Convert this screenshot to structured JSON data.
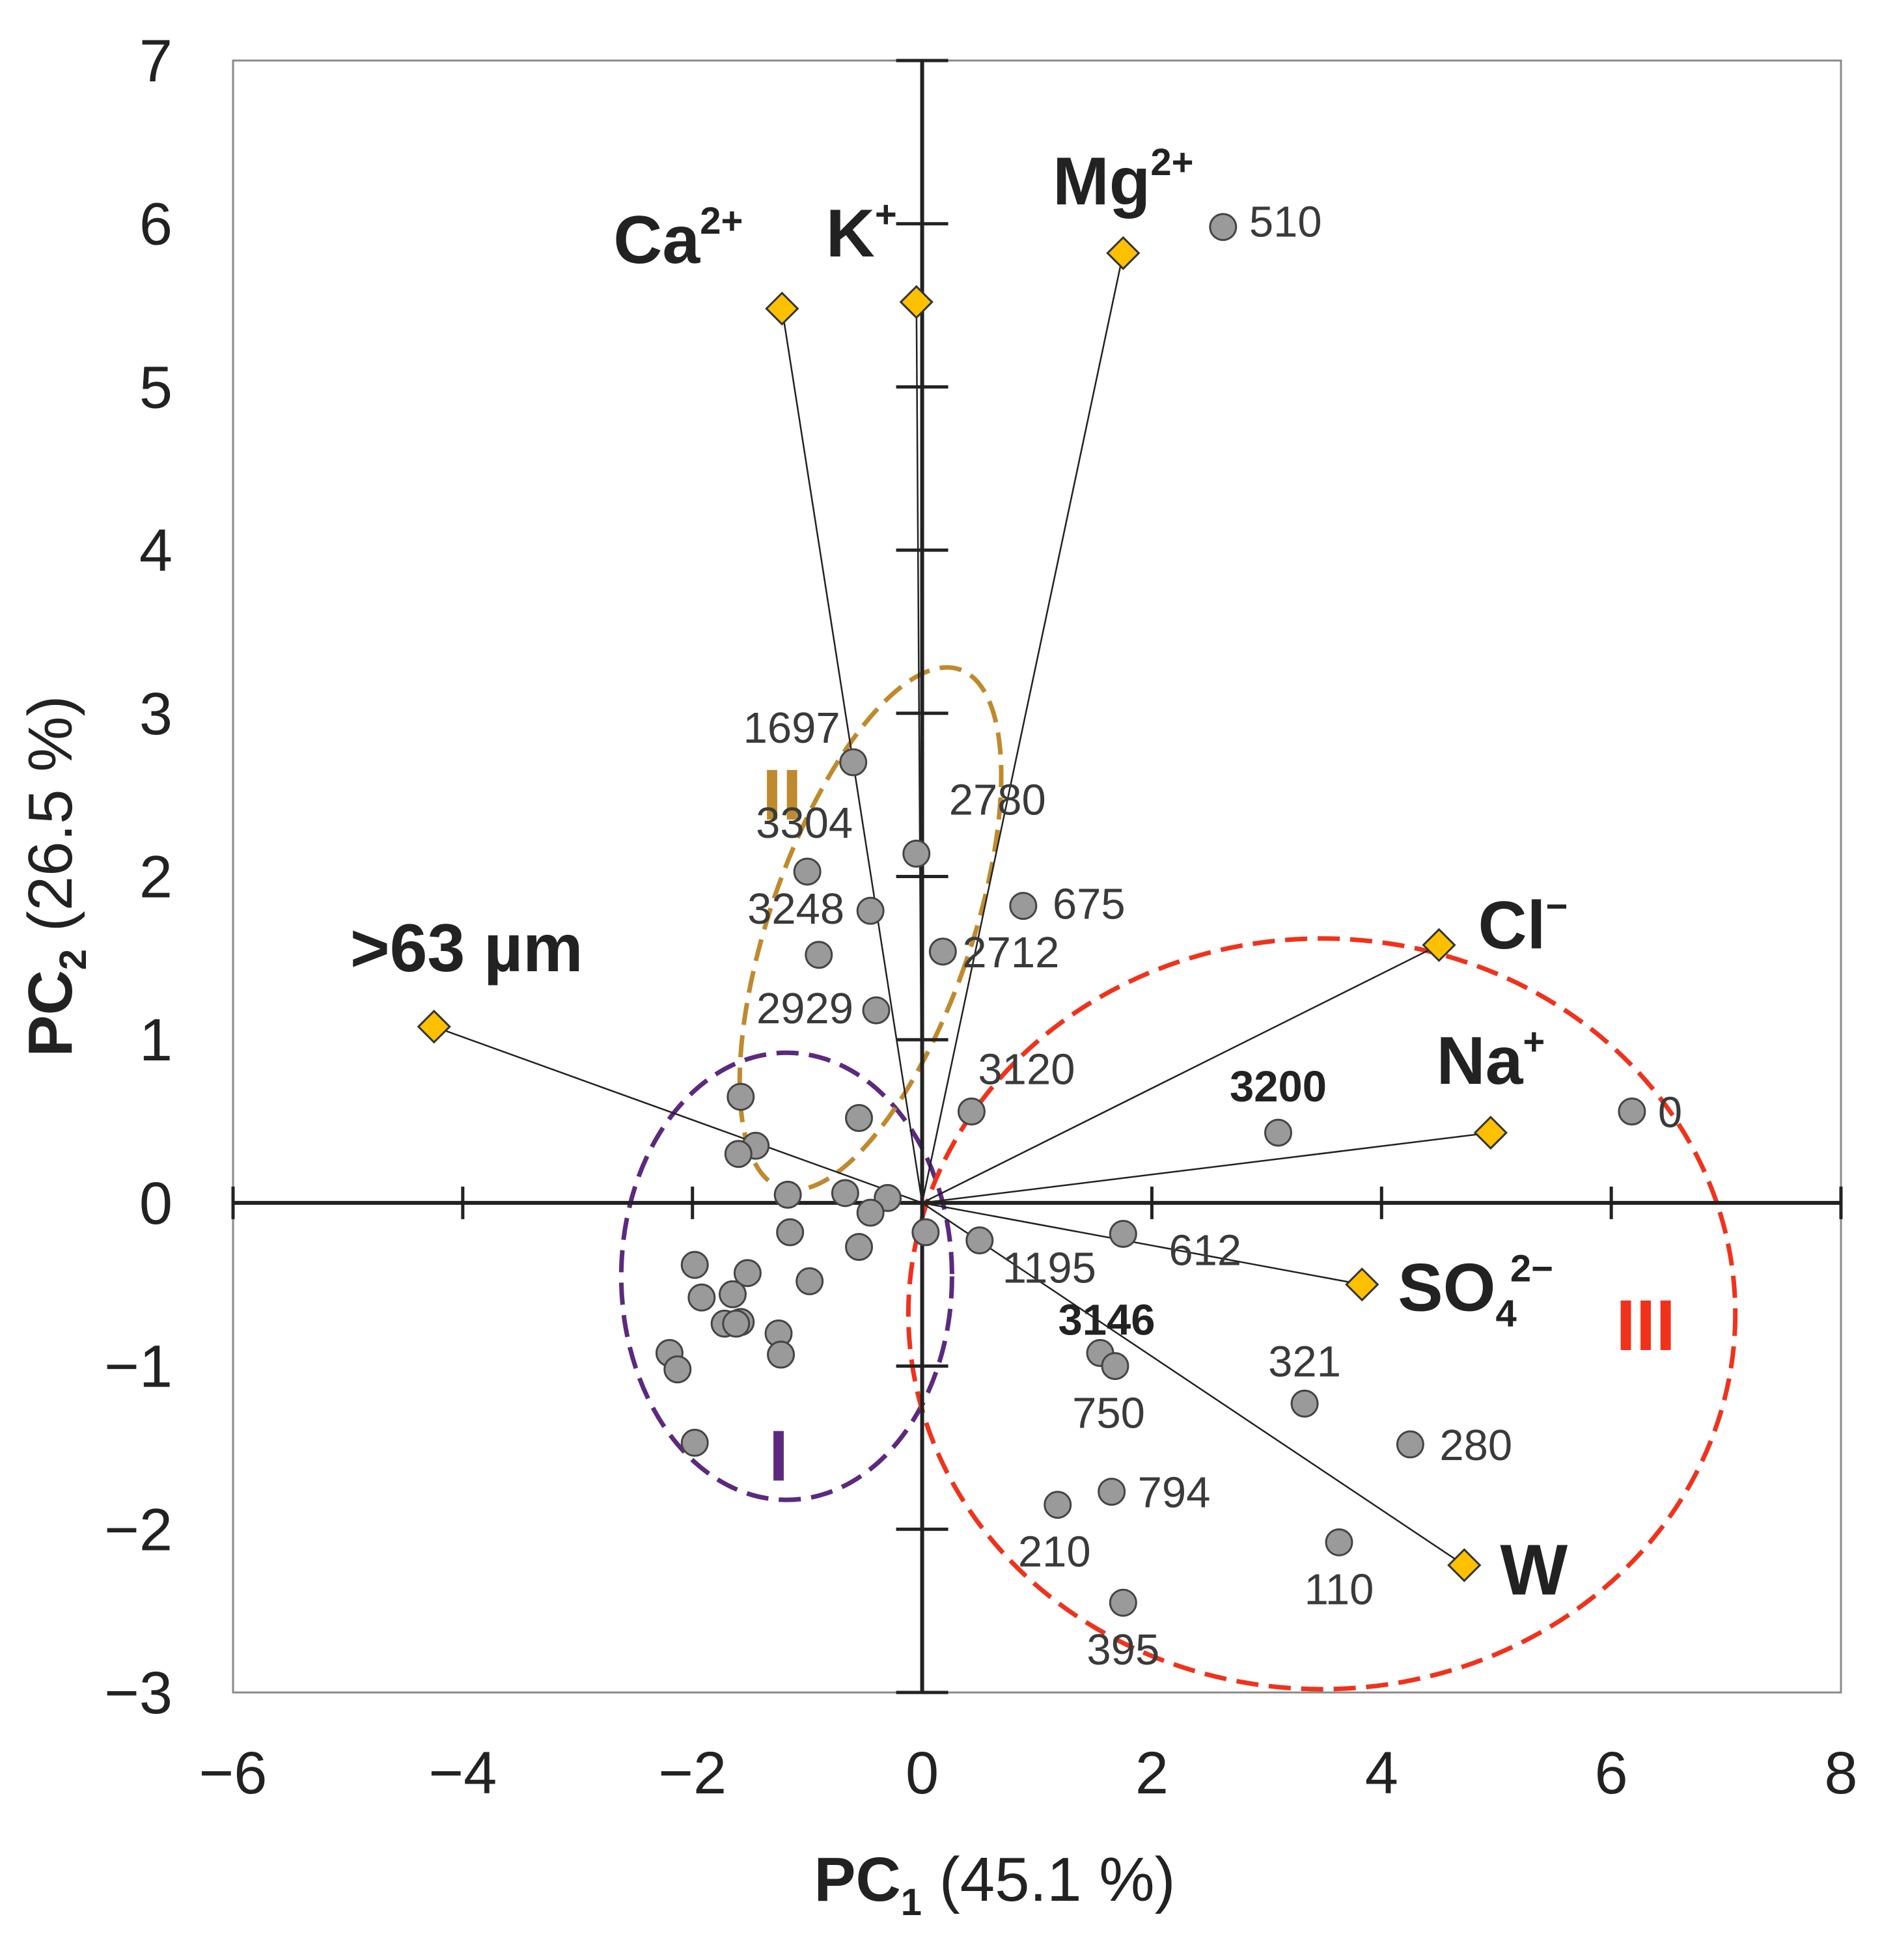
{
  "chart_data": {
    "type": "scatter",
    "subtype": "pca-biplot",
    "xlabel": {
      "main": "PC",
      "sub": "1",
      "rest": " (45.1 %)"
    },
    "ylabel": {
      "main": "PC",
      "sub": "2",
      "rest": " (26.5 %)"
    },
    "xlim": [
      -6,
      8
    ],
    "ylim": [
      -3,
      7
    ],
    "x_ticks": [
      -6,
      -4,
      -2,
      0,
      2,
      4,
      6,
      8
    ],
    "y_ticks": [
      -3,
      -2,
      -1,
      0,
      1,
      2,
      3,
      4,
      5,
      6,
      7
    ],
    "x_tick_labels": [
      "−6",
      "−4",
      "−2",
      "0",
      "2",
      "4",
      "6",
      "8"
    ],
    "y_tick_labels": [
      "−3",
      "−2",
      "−1",
      "0",
      "1",
      "2",
      "3",
      "4",
      "5",
      "6",
      "7"
    ],
    "colors": {
      "point_fill": "#9a9a9a",
      "point_stroke": "#444444",
      "loading_fill": "#FFC000",
      "loading_stroke": "#333333",
      "axis": "#222222",
      "group_I": "#5B2A7E",
      "group_II": "#BF8A2E",
      "group_III": "#F0321C"
    },
    "loadings": [
      {
        "name": "Ca",
        "sup": "2+",
        "sub": "",
        "x": -1.22,
        "y": 5.48
      },
      {
        "name": "K",
        "sup": "+",
        "sub": "",
        "x": -0.05,
        "y": 5.52
      },
      {
        "name": "Mg",
        "sup": "2+",
        "sub": "",
        "x": 1.75,
        "y": 5.82
      },
      {
        "name": "Cl",
        "sup": "−",
        "sub": "",
        "x": 4.5,
        "y": 1.58
      },
      {
        "name": "Na",
        "sup": "+",
        "sub": "",
        "x": 4.95,
        "y": 0.43
      },
      {
        "name": "SO",
        "sup": "2−",
        "sub": "4",
        "x": 3.83,
        "y": -0.5
      },
      {
        "name": "W",
        "sup": "",
        "sub": "",
        "x": 4.72,
        "y": -2.22
      },
      {
        "name": ">63 µm",
        "sup": "",
        "sub": "",
        "x": -4.25,
        "y": 1.08
      }
    ],
    "samples": [
      {
        "label": "510",
        "x": 2.62,
        "y": 5.98,
        "bold": false
      },
      {
        "label": "1697",
        "x": -0.6,
        "y": 2.7,
        "bold": false
      },
      {
        "label": "2780",
        "x": -0.05,
        "y": 2.14,
        "bold": false
      },
      {
        "label": "3304",
        "x": -1.0,
        "y": 2.03,
        "bold": false
      },
      {
        "label": "675",
        "x": 0.88,
        "y": 1.82,
        "bold": false
      },
      {
        "label": "3248",
        "x": -0.45,
        "y": 1.79,
        "bold": false
      },
      {
        "label": "",
        "x": -0.9,
        "y": 1.52,
        "bold": false
      },
      {
        "label": "2712",
        "x": 0.18,
        "y": 1.54,
        "bold": false
      },
      {
        "label": "2929",
        "x": -0.4,
        "y": 1.18,
        "bold": false
      },
      {
        "label": "3120",
        "x": 0.43,
        "y": 0.56,
        "bold": false
      },
      {
        "label": "3200",
        "x": 3.1,
        "y": 0.43,
        "bold": true
      },
      {
        "label": "0",
        "x": 6.18,
        "y": 0.56,
        "bold": false
      },
      {
        "label": "612",
        "x": 1.75,
        "y": -0.19,
        "bold": false
      },
      {
        "label": "1195",
        "x": 0.5,
        "y": -0.23,
        "bold": false
      },
      {
        "label": "3146",
        "x": 1.55,
        "y": -0.92,
        "bold": true
      },
      {
        "label": "750",
        "x": 1.68,
        "y": -1.0,
        "bold": false
      },
      {
        "label": "321",
        "x": 3.33,
        "y": -1.23,
        "bold": false
      },
      {
        "label": "280",
        "x": 4.25,
        "y": -1.48,
        "bold": false
      },
      {
        "label": "794",
        "x": 1.65,
        "y": -1.77,
        "bold": false
      },
      {
        "label": "210",
        "x": 1.18,
        "y": -1.85,
        "bold": false
      },
      {
        "label": "110",
        "x": 3.63,
        "y": -2.08,
        "bold": false
      },
      {
        "label": "395",
        "x": 1.75,
        "y": -2.45,
        "bold": false
      },
      {
        "label": "",
        "x": -1.58,
        "y": 0.65,
        "bold": false
      },
      {
        "label": "",
        "x": -1.45,
        "y": 0.35,
        "bold": false
      },
      {
        "label": "",
        "x": -1.6,
        "y": 0.3,
        "bold": false
      },
      {
        "label": "",
        "x": -0.55,
        "y": 0.52,
        "bold": false
      },
      {
        "label": "",
        "x": -1.17,
        "y": 0.05,
        "bold": false
      },
      {
        "label": "",
        "x": -0.67,
        "y": 0.06,
        "bold": false
      },
      {
        "label": "",
        "x": -0.3,
        "y": 0.03,
        "bold": false
      },
      {
        "label": "",
        "x": -0.45,
        "y": -0.06,
        "bold": false
      },
      {
        "label": "",
        "x": -1.15,
        "y": -0.18,
        "bold": false
      },
      {
        "label": "",
        "x": -0.55,
        "y": -0.27,
        "bold": false
      },
      {
        "label": "",
        "x": 0.03,
        "y": -0.18,
        "bold": false
      },
      {
        "label": "",
        "x": -0.98,
        "y": -0.48,
        "bold": false
      },
      {
        "label": "",
        "x": -1.98,
        "y": -0.38,
        "bold": false
      },
      {
        "label": "",
        "x": -1.52,
        "y": -0.43,
        "bold": false
      },
      {
        "label": "",
        "x": -1.92,
        "y": -0.58,
        "bold": false
      },
      {
        "label": "",
        "x": -1.65,
        "y": -0.56,
        "bold": false
      },
      {
        "label": "",
        "x": -1.58,
        "y": -0.73,
        "bold": false
      },
      {
        "label": "",
        "x": -1.72,
        "y": -0.74,
        "bold": false
      },
      {
        "label": "",
        "x": -1.62,
        "y": -0.74,
        "bold": false
      },
      {
        "label": "",
        "x": -1.25,
        "y": -0.8,
        "bold": false
      },
      {
        "label": "",
        "x": -1.23,
        "y": -0.93,
        "bold": false
      },
      {
        "label": "",
        "x": -2.2,
        "y": -0.92,
        "bold": false
      },
      {
        "label": "",
        "x": -2.13,
        "y": -1.02,
        "bold": false
      },
      {
        "label": "",
        "x": -1.98,
        "y": -1.47,
        "bold": false
      }
    ],
    "groups": [
      {
        "label": "I",
        "color": "#5B2A7E",
        "cx": -1.18,
        "cy": -0.45,
        "rx": 1.44,
        "ry": 1.37,
        "angle": 0
      },
      {
        "label": "II",
        "color": "#BF8A2E",
        "cx": -0.45,
        "cy": 1.68,
        "rx": 0.88,
        "ry": 1.68,
        "angle": 19
      },
      {
        "label": "III",
        "color": "#F0321C",
        "cx": 3.48,
        "cy": -0.68,
        "rx": 3.6,
        "ry": 2.3,
        "angle": 0
      }
    ]
  }
}
